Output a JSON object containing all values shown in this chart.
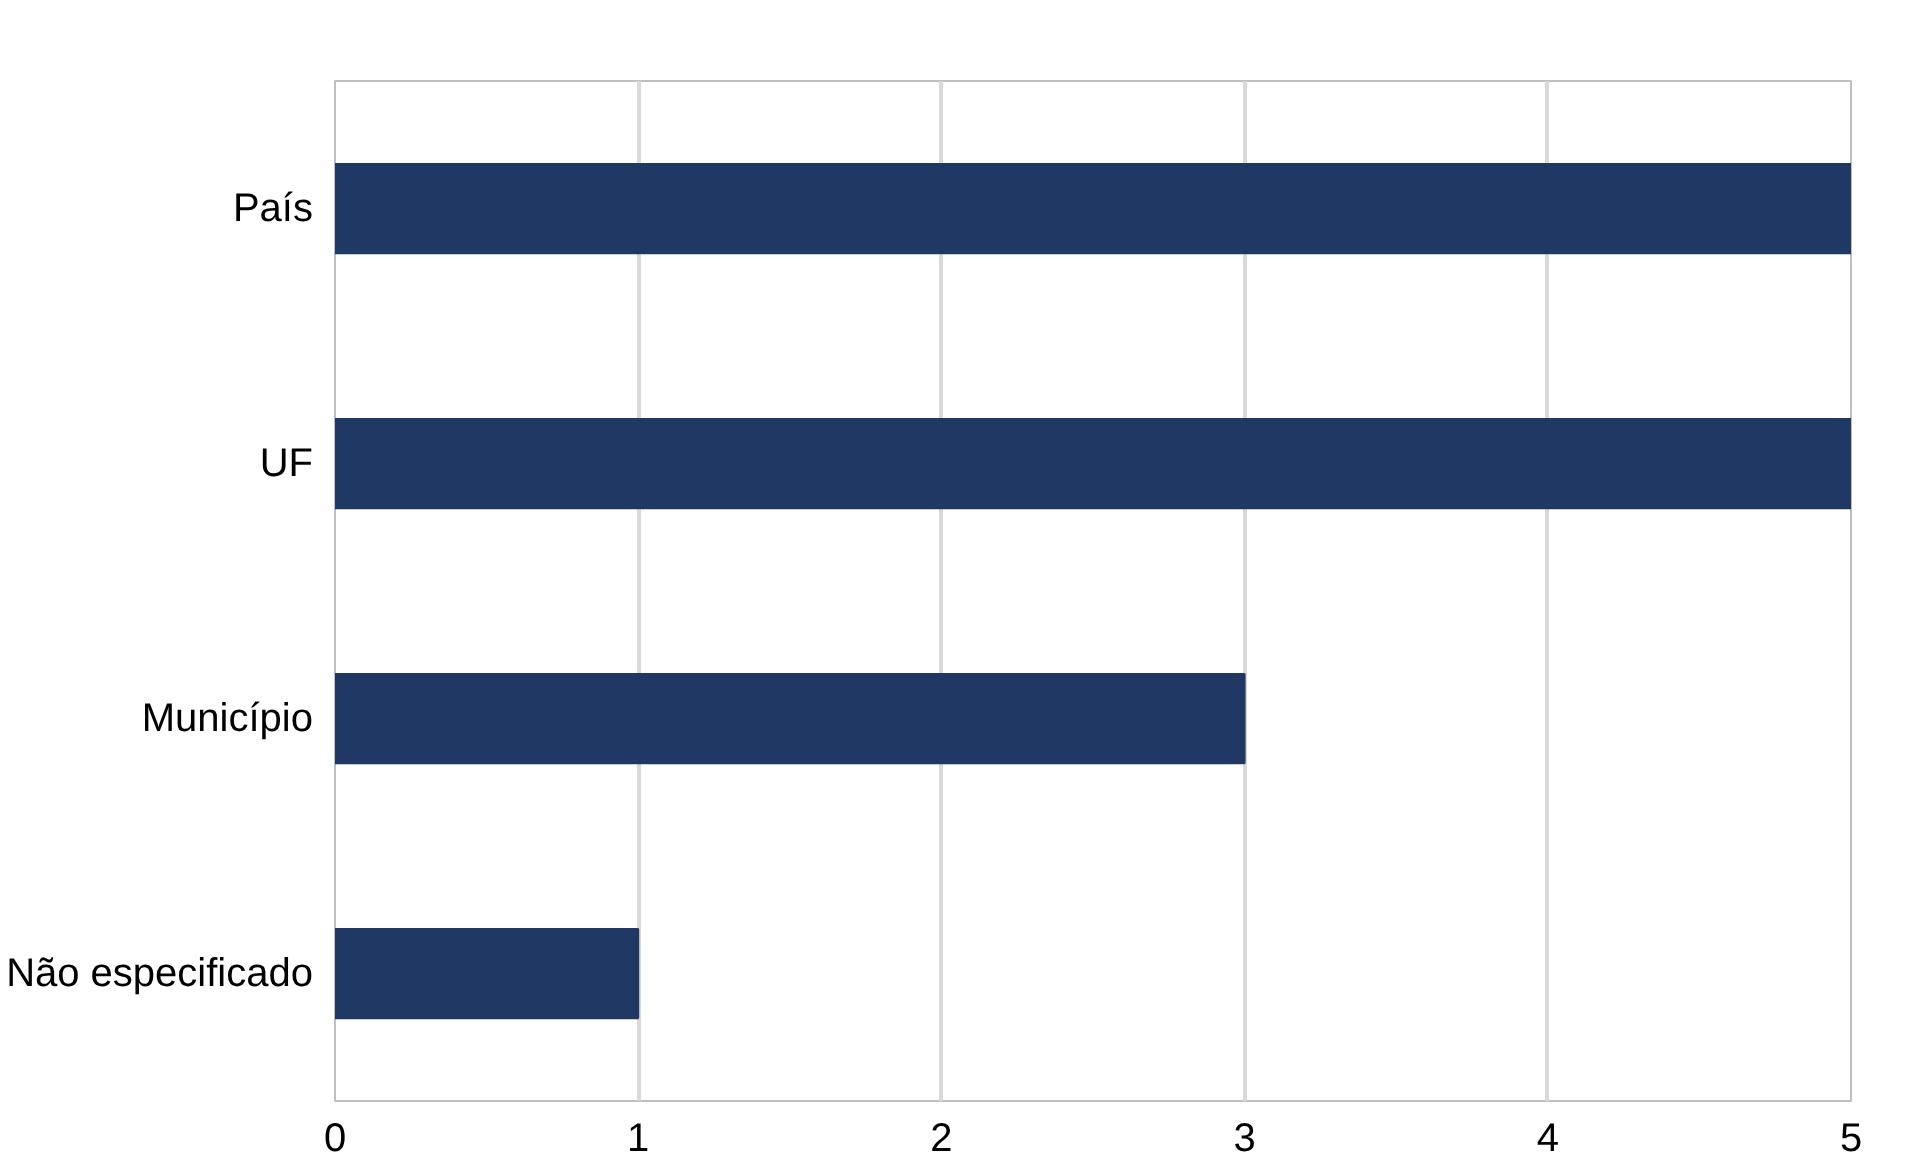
{
  "chart_data": {
    "type": "bar",
    "orientation": "horizontal",
    "categories": [
      "País",
      "UF",
      "Município",
      "Não especificado"
    ],
    "values": [
      5,
      5,
      3,
      1
    ],
    "color": "#1f3864",
    "xlim": [
      0,
      5
    ],
    "xticks": [
      0,
      1,
      2,
      3,
      4,
      5
    ],
    "grid": "x"
  }
}
